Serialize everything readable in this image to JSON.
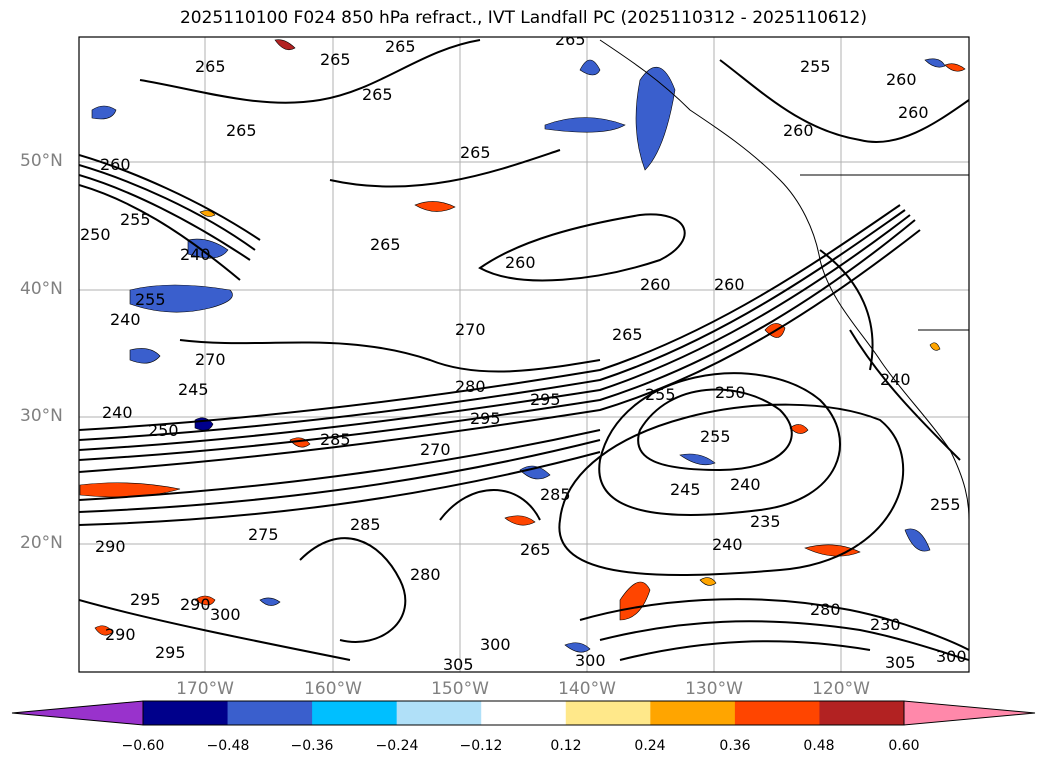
{
  "title": "2025110100 F024 850 hPa refract., IVT Landfall PC (2025110312 - 2025110612)",
  "lat_labels": [
    "50°N",
    "40°N",
    "30°N",
    "20°N"
  ],
  "lon_labels": [
    "170°W",
    "160°W",
    "150°W",
    "140°W",
    "130°W",
    "120°W"
  ],
  "colorbar": {
    "ticks": [
      "−0.60",
      "−0.48",
      "−0.36",
      "−0.24",
      "−0.12",
      "0.12",
      "0.24",
      "0.36",
      "0.48",
      "0.60"
    ],
    "colors": [
      "#9932cc",
      "#00008b",
      "#3a5fcd",
      "#00bfff",
      "#b0e0f8",
      "#ffffff",
      "#ffe88a",
      "#ffa500",
      "#ff4500",
      "#b22222",
      "#ff88aa"
    ]
  },
  "contour_labels": [
    "265",
    "265",
    "265",
    "265",
    "265",
    "265",
    "255",
    "260",
    "260",
    "260",
    "265",
    "260",
    "260",
    "255",
    "250",
    "255",
    "245",
    "260",
    "240",
    "270",
    "270",
    "265",
    "240",
    "250",
    "280",
    "295",
    "295",
    "285",
    "255",
    "250",
    "255",
    "240",
    "245",
    "240",
    "235",
    "240",
    "270",
    "285",
    "275",
    "265",
    "290",
    "280",
    "300",
    "290",
    "295",
    "285",
    "300",
    "305",
    "290",
    "295",
    "280",
    "300",
    "305",
    "230",
    "300",
    "255",
    "240",
    "260",
    "265"
  ]
}
